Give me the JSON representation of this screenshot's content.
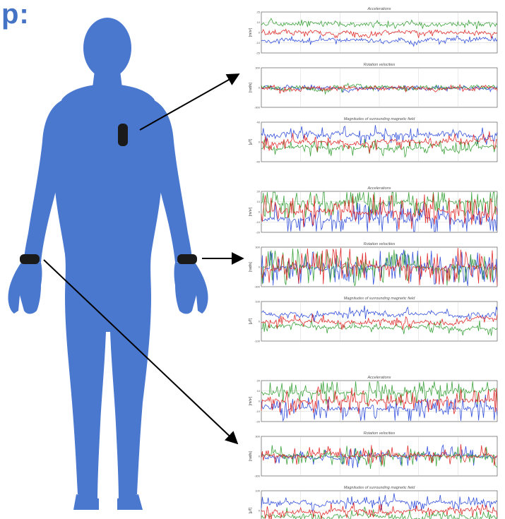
{
  "heading": "p:",
  "colors": {
    "body": "#4a78cf",
    "sensor": "#1a1a1a",
    "arrow": "#000000",
    "x_axis": "#1f3fd8",
    "y_axis": "#2a9a2a",
    "z_axis": "#e01818"
  },
  "sensors": [
    {
      "name": "chest-sensor"
    },
    {
      "name": "left-wrist-sensor"
    },
    {
      "name": "right-wrist-sensor"
    }
  ],
  "panels": [
    {
      "name": "chest",
      "charts": [
        {
          "title": "Accelerations",
          "ylabel": "[m/s²]",
          "ticks": [
            "25",
            "10",
            "0",
            "-10",
            "-25"
          ],
          "activity": 0.25
        },
        {
          "title": "Rotation velocities",
          "ylabel": "[rad/s]",
          "ticks": [
            "300",
            "0",
            "-300"
          ],
          "activity": 0.2
        },
        {
          "title": "Magnitudes of surrounding magnetic field",
          "ylabel": "[μT]",
          "ticks": [
            "40",
            "0",
            "-40"
          ],
          "activity": 0.5
        }
      ]
    },
    {
      "name": "wrist-right",
      "charts": [
        {
          "title": "Accelerations",
          "ylabel": "[m/s²]",
          "ticks": [
            "20",
            "10",
            "0",
            "-10",
            "-20"
          ],
          "activity": 0.9
        },
        {
          "title": "Rotation velocities",
          "ylabel": "[rad/s]",
          "ticks": [
            "300",
            "0",
            "-300"
          ],
          "activity": 1.0
        },
        {
          "title": "Magnitudes of surrounding magnetic field",
          "ylabel": "[μT]",
          "ticks": [
            "100",
            "0",
            "-100"
          ],
          "activity": 0.4
        }
      ]
    },
    {
      "name": "wrist-left",
      "charts": [
        {
          "title": "Accelerations",
          "ylabel": "[m/s²]",
          "ticks": [
            "20",
            "10",
            "0",
            "-10",
            "-20"
          ],
          "activity": 0.7
        },
        {
          "title": "Rotation velocities",
          "ylabel": "[rad/s]",
          "ticks": [
            "300",
            "0",
            "-300"
          ],
          "activity": 0.6
        },
        {
          "title": "Magnitudes of surrounding magnetic field",
          "ylabel": "[μT]",
          "ticks": [
            "100",
            "0",
            "-100"
          ],
          "activity": 0.45
        }
      ]
    }
  ]
}
